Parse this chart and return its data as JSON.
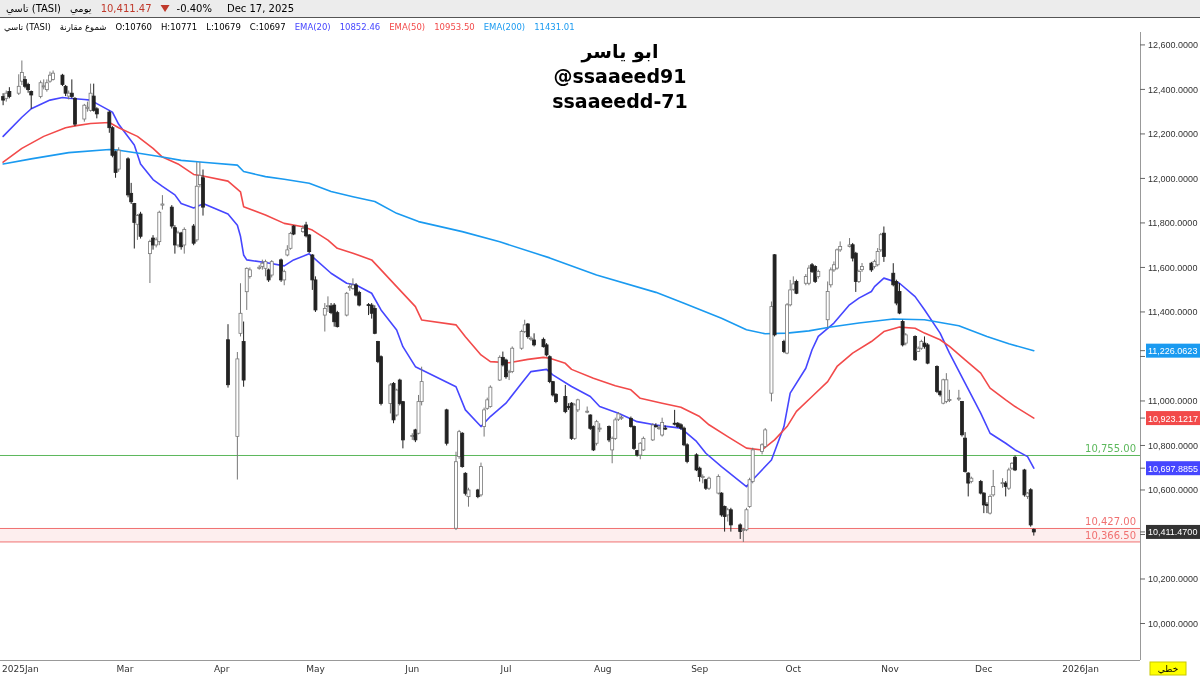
{
  "chart_data": {
    "type": "candlestick",
    "title": "تاسي (TASI)",
    "subtitle": "تاسي (TASI)",
    "xlim": [
      "2025-01-20",
      "2026-01-20"
    ],
    "xticks": [
      {
        "value": "2025-01-21",
        "label": "2025Jan"
      },
      {
        "value": "2025-03-01",
        "label": "Mar"
      },
      {
        "value": "2025-04-01",
        "label": "Apr"
      },
      {
        "value": "2025-05-01",
        "label": "May"
      },
      {
        "value": "2025-06-01",
        "label": "Jun"
      },
      {
        "value": "2025-07-01",
        "label": "Jul"
      },
      {
        "value": "2025-08-01",
        "label": "Aug"
      },
      {
        "value": "2025-09-01",
        "label": "Sep"
      },
      {
        "value": "2025-10-01",
        "label": "Oct"
      },
      {
        "value": "2025-11-01",
        "label": "Nov"
      },
      {
        "value": "2025-12-01",
        "label": "Dec"
      },
      {
        "value": "2026-01-01",
        "label": "2026Jan"
      }
    ],
    "ylim": [
      9836,
      12658
    ],
    "yticks": [
      {
        "value": 10000,
        "label": "10,000.0000"
      },
      {
        "value": 10200,
        "label": "10,200.0000"
      },
      {
        "value": 10400,
        "label": null
      },
      {
        "value": 10600,
        "label": "10,600.0000"
      },
      {
        "value": 10800,
        "label": "10,800.0000"
      },
      {
        "value": 11000,
        "label": "11,000.0000"
      },
      {
        "value": 11200,
        "label": null
      },
      {
        "value": 11400,
        "label": "11,400.0000"
      },
      {
        "value": 11600,
        "label": "11,600.0000"
      },
      {
        "value": 11800,
        "label": "11,800.0000"
      },
      {
        "value": 12000,
        "label": "12,000.0000"
      },
      {
        "value": 12200,
        "label": "12,200.0000"
      },
      {
        "value": 12400,
        "label": "12,400.0000"
      },
      {
        "value": 12600,
        "label": "12,600.0000"
      },
      {
        "value": 11226.0623,
        "label": "11,226.0623"
      },
      {
        "value": 10923.1217,
        "label": "10,923.1217"
      },
      {
        "value": 10697.8855,
        "label": "10,697.8855"
      },
      {
        "value": 10411.47,
        "label": "10,411.4700"
      }
    ],
    "legend": "top",
    "x": [
      "2025-01-21",
      "2025-01-22",
      "2025-01-23",
      "2025-01-26",
      "2025-01-27",
      "2025-01-28",
      "2025-01-29",
      "2025-01-30",
      "2025-02-02",
      "2025-02-03",
      "2025-02-04",
      "2025-02-05",
      "2025-02-06",
      "2025-02-09",
      "2025-02-10",
      "2025-02-11",
      "2025-02-12",
      "2025-02-13",
      "2025-02-16",
      "2025-02-17",
      "2025-02-18",
      "2025-02-19",
      "2025-02-20",
      "2025-02-24",
      "2025-02-25",
      "2025-02-26",
      "2025-02-27",
      "2025-03-02",
      "2025-03-03",
      "2025-03-04",
      "2025-03-05",
      "2025-03-06",
      "2025-03-09",
      "2025-03-10",
      "2025-03-11",
      "2025-03-12",
      "2025-03-13",
      "2025-03-16",
      "2025-03-17",
      "2025-03-18",
      "2025-03-19",
      "2025-03-20",
      "2025-03-23",
      "2025-03-24",
      "2025-03-25",
      "2025-03-26",
      "2025-04-03",
      "2025-04-06",
      "2025-04-07",
      "2025-04-08",
      "2025-04-09",
      "2025-04-10",
      "2025-04-13",
      "2025-04-14",
      "2025-04-15",
      "2025-04-16",
      "2025-04-17",
      "2025-04-20",
      "2025-04-21",
      "2025-04-22",
      "2025-04-23",
      "2025-04-24",
      "2025-04-27",
      "2025-04-28",
      "2025-04-29",
      "2025-04-30",
      "2025-05-01",
      "2025-05-04",
      "2025-05-05",
      "2025-05-06",
      "2025-05-07",
      "2025-05-08",
      "2025-05-11",
      "2025-05-12",
      "2025-05-13",
      "2025-05-14",
      "2025-05-15",
      "2025-05-18",
      "2025-05-19",
      "2025-05-20",
      "2025-05-21",
      "2025-05-22",
      "2025-05-25",
      "2025-05-26",
      "2025-05-27",
      "2025-05-28",
      "2025-05-29",
      "2025-06-01",
      "2025-06-02",
      "2025-06-03",
      "2025-06-04",
      "2025-06-12",
      "2025-06-15",
      "2025-06-16",
      "2025-06-17",
      "2025-06-18",
      "2025-06-19",
      "2025-06-22",
      "2025-06-23",
      "2025-06-24",
      "2025-06-25",
      "2025-06-26",
      "2025-06-29",
      "2025-06-30",
      "2025-07-01",
      "2025-07-02",
      "2025-07-03",
      "2025-07-06",
      "2025-07-07",
      "2025-07-08",
      "2025-07-09",
      "2025-07-10",
      "2025-07-13",
      "2025-07-14",
      "2025-07-15",
      "2025-07-16",
      "2025-07-17",
      "2025-07-20",
      "2025-07-21",
      "2025-07-22",
      "2025-07-23",
      "2025-07-24",
      "2025-07-27",
      "2025-07-28",
      "2025-07-29",
      "2025-07-30",
      "2025-07-31",
      "2025-08-03",
      "2025-08-04",
      "2025-08-05",
      "2025-08-06",
      "2025-08-07",
      "2025-08-10",
      "2025-08-11",
      "2025-08-12",
      "2025-08-13",
      "2025-08-14",
      "2025-08-17",
      "2025-08-18",
      "2025-08-19",
      "2025-08-20",
      "2025-08-21",
      "2025-08-24",
      "2025-08-25",
      "2025-08-26",
      "2025-08-27",
      "2025-08-28",
      "2025-08-31",
      "2025-09-01",
      "2025-09-02",
      "2025-09-03",
      "2025-09-04",
      "2025-09-07",
      "2025-09-08",
      "2025-09-09",
      "2025-09-10",
      "2025-09-11",
      "2025-09-14",
      "2025-09-15",
      "2025-09-16",
      "2025-09-17",
      "2025-09-18",
      "2025-09-21",
      "2025-09-22",
      "2025-09-24",
      "2025-09-25",
      "2025-09-28",
      "2025-09-29",
      "2025-09-30",
      "2025-10-01",
      "2025-10-02",
      "2025-10-05",
      "2025-10-06",
      "2025-10-07",
      "2025-10-08",
      "2025-10-09",
      "2025-10-12",
      "2025-10-13",
      "2025-10-14",
      "2025-10-15",
      "2025-10-16",
      "2025-10-19",
      "2025-10-20",
      "2025-10-21",
      "2025-10-22",
      "2025-10-23",
      "2025-10-26",
      "2025-10-27",
      "2025-10-28",
      "2025-10-29",
      "2025-10-30",
      "2025-11-02",
      "2025-11-03",
      "2025-11-04",
      "2025-11-05",
      "2025-11-06",
      "2025-11-09",
      "2025-11-10",
      "2025-11-11",
      "2025-11-12",
      "2025-11-13",
      "2025-11-16",
      "2025-11-17",
      "2025-11-18",
      "2025-11-19",
      "2025-11-20",
      "2025-11-23",
      "2025-11-24",
      "2025-11-25",
      "2025-11-26",
      "2025-11-27",
      "2025-11-30",
      "2025-12-01",
      "2025-12-02",
      "2025-12-03",
      "2025-12-04",
      "2025-12-07",
      "2025-12-08",
      "2025-12-09",
      "2025-12-10",
      "2025-12-11",
      "2025-12-14",
      "2025-12-15",
      "2025-12-16",
      "2025-12-17"
    ],
    "ohlc": [
      [
        12368,
        12383,
        12329,
        12352
      ],
      [
        12360,
        12395,
        12345,
        12383
      ],
      [
        12391,
        12410,
        12360,
        12368
      ],
      [
        12383,
        12468,
        12375,
        12414
      ],
      [
        12437,
        12530,
        12420,
        12476
      ],
      [
        12445,
        12460,
        12405,
        12414
      ],
      [
        12422,
        12430,
        12385,
        12399
      ],
      [
        12391,
        12395,
        12313,
        12375
      ],
      [
        12368,
        12440,
        12360,
        12430
      ],
      [
        12414,
        12445,
        12400,
        12416
      ],
      [
        12399,
        12445,
        12390,
        12430
      ],
      [
        12437,
        12480,
        12430,
        12464
      ],
      [
        12445,
        12485,
        12440,
        12473
      ],
      [
        12464,
        12470,
        12415,
        12422
      ],
      [
        12414,
        12420,
        12370,
        12383
      ],
      [
        12370,
        12395,
        12355,
        12383
      ],
      [
        12383,
        12445,
        12360,
        12368
      ],
      [
        12360,
        12365,
        12235,
        12244
      ],
      [
        12267,
        12335,
        12255,
        12329
      ],
      [
        12315,
        12345,
        12300,
        12320
      ],
      [
        12306,
        12426,
        12300,
        12383
      ],
      [
        12370,
        12426,
        12300,
        12306
      ],
      [
        12313,
        12320,
        12270,
        12290
      ],
      [
        12298,
        12305,
        12205,
        12228
      ],
      [
        12228,
        12235,
        12095,
        12104
      ],
      [
        12120,
        12125,
        12003,
        12027
      ],
      [
        12042,
        12140,
        12030,
        12127
      ],
      [
        12088,
        12095,
        11915,
        11926
      ],
      [
        11933,
        11980,
        11885,
        11895
      ],
      [
        11887,
        11890,
        11685,
        11802
      ],
      [
        11794,
        11840,
        11724,
        11833
      ],
      [
        11840,
        11850,
        11730,
        11740
      ],
      [
        11662,
        11725,
        11530,
        11716
      ],
      [
        11732,
        11745,
        11680,
        11701
      ],
      [
        11701,
        11735,
        11690,
        11724
      ],
      [
        11716,
        11855,
        11700,
        11848
      ],
      [
        11880,
        11925,
        11860,
        11885
      ],
      [
        11871,
        11880,
        11775,
        11786
      ],
      [
        11779,
        11790,
        11662,
        11701
      ],
      [
        11701,
        11765,
        11690,
        11755
      ],
      [
        11755,
        11760,
        11680,
        11693
      ],
      [
        11701,
        11780,
        11662,
        11771
      ],
      [
        11786,
        11795,
        11700,
        11709
      ],
      [
        11724,
        12073,
        11715,
        11965
      ],
      [
        11972,
        12073,
        11960,
        12014
      ],
      [
        12003,
        12040,
        11833,
        11871
      ],
      [
        11275,
        11345,
        11060,
        11073
      ],
      [
        10841,
        11220,
        10647,
        11189
      ],
      [
        11304,
        11529,
        11290,
        11394
      ],
      [
        11267,
        11357,
        11064,
        11094
      ],
      [
        11491,
        11600,
        11409,
        11596
      ],
      [
        11559,
        11600,
        11550,
        11589
      ],
      [
        11596,
        11610,
        11590,
        11601
      ],
      [
        11604,
        11635,
        11590,
        11619
      ],
      [
        11596,
        11635,
        11560,
        11626
      ],
      [
        11589,
        11595,
        11535,
        11544
      ],
      [
        11566,
        11633,
        11555,
        11626
      ],
      [
        11634,
        11640,
        11535,
        11544
      ],
      [
        11544,
        11590,
        11520,
        11581
      ],
      [
        11656,
        11700,
        11650,
        11679
      ],
      [
        11686,
        11760,
        11680,
        11753
      ],
      [
        11786,
        11790,
        11745,
        11750
      ],
      [
        11761,
        11790,
        11755,
        11776
      ],
      [
        11791,
        11805,
        11735,
        11742
      ],
      [
        11746,
        11750,
        11665,
        11671
      ],
      [
        11656,
        11660,
        11499,
        11544
      ],
      [
        11544,
        11560,
        11400,
        11409
      ],
      [
        11386,
        11440,
        11312,
        11416
      ],
      [
        11425,
        11470,
        11400,
        11428
      ],
      [
        11427,
        11440,
        11390,
        11397
      ],
      [
        11431,
        11440,
        11334,
        11356
      ],
      [
        11397,
        11405,
        11330,
        11334
      ],
      [
        11386,
        11490,
        11380,
        11484
      ],
      [
        11509,
        11530,
        11495,
        11514
      ],
      [
        11506,
        11551,
        11500,
        11521
      ],
      [
        11521,
        11530,
        11470,
        11476
      ],
      [
        11487,
        11495,
        11425,
        11431
      ],
      [
        11433,
        11440,
        11386,
        11431
      ],
      [
        11431,
        11440,
        11370,
        11394
      ],
      [
        11416,
        11430,
        11300,
        11304
      ],
      [
        11267,
        11270,
        11170,
        11177
      ],
      [
        11199,
        11205,
        10980,
        10989
      ],
      [
        10989,
        11080,
        10944,
        11072
      ],
      [
        11079,
        11085,
        10900,
        10915
      ],
      [
        10937,
        11055,
        10930,
        11049
      ],
      [
        11094,
        11100,
        10980,
        10989
      ],
      [
        10997,
        11000,
        10787,
        10825
      ],
      [
        10840,
        10855,
        10825,
        10845
      ],
      [
        10870,
        10875,
        10815,
        10825
      ],
      [
        10855,
        11027,
        10850,
        10997
      ],
      [
        10997,
        11154,
        10980,
        11087
      ],
      [
        10960,
        10965,
        10800,
        10810
      ],
      [
        10428,
        10772,
        10420,
        10727
      ],
      [
        10750,
        10870,
        10740,
        10862
      ],
      [
        10855,
        10860,
        10700,
        10705
      ],
      [
        10675,
        10680,
        10575,
        10585
      ],
      [
        10570,
        10610,
        10525,
        10600
      ],
      [
        10600,
        10605,
        10563,
        10570
      ],
      [
        10578,
        10723,
        10570,
        10705
      ],
      [
        10885,
        10970,
        10840,
        10960
      ],
      [
        10967,
        11015,
        10960,
        11005
      ],
      [
        10975,
        11070,
        10970,
        11062
      ],
      [
        11094,
        11205,
        11090,
        11196
      ],
      [
        11196,
        11222,
        11155,
        11162
      ],
      [
        11184,
        11190,
        11100,
        11109
      ],
      [
        11130,
        11140,
        11094,
        11132
      ],
      [
        11132,
        11245,
        11125,
        11237
      ],
      [
        11237,
        11320,
        11230,
        11312
      ],
      [
        11312,
        11365,
        11305,
        11342
      ],
      [
        11346,
        11350,
        11280,
        11289
      ],
      [
        11280,
        11290,
        11270,
        11282
      ],
      [
        11274,
        11304,
        11245,
        11252
      ],
      [
        11277,
        11285,
        11240,
        11244
      ],
      [
        11252,
        11260,
        11200,
        11207
      ],
      [
        11199,
        11205,
        11080,
        11087
      ],
      [
        11087,
        11090,
        11020,
        11027
      ],
      [
        11030,
        11035,
        10990,
        10997
      ],
      [
        11020,
        11072,
        10945,
        10952
      ],
      [
        10975,
        10990,
        10960,
        10973
      ],
      [
        10990,
        10995,
        10825,
        10832
      ],
      [
        10832,
        10990,
        10825,
        10982
      ],
      [
        10960,
        11010,
        10950,
        11005
      ],
      [
        10952,
        10975,
        10945,
        10954
      ],
      [
        10937,
        10940,
        10870,
        10877
      ],
      [
        10885,
        10890,
        10775,
        10780
      ],
      [
        10810,
        10915,
        10800,
        10907
      ],
      [
        10877,
        10900,
        10860,
        10878
      ],
      [
        10885,
        10890,
        10815,
        10825
      ],
      [
        10780,
        10840,
        10720,
        10832
      ],
      [
        10832,
        10925,
        10825,
        10915
      ],
      [
        10918,
        10950,
        10910,
        10942
      ],
      [
        10925,
        10935,
        10915,
        10927
      ],
      [
        10922,
        10930,
        10880,
        10885
      ],
      [
        10885,
        10890,
        10780,
        10787
      ],
      [
        10777,
        10780,
        10750,
        10757
      ],
      [
        10757,
        10815,
        10738,
        10810
      ],
      [
        10780,
        10840,
        10775,
        10832
      ],
      [
        10825,
        10900,
        10820,
        10892
      ],
      [
        10889,
        10900,
        10880,
        10887
      ],
      [
        10877,
        10890,
        10870,
        10880
      ],
      [
        10847,
        10925,
        10840,
        10903
      ],
      [
        10878,
        10890,
        10870,
        10877
      ],
      [
        10900,
        10960,
        10890,
        10898
      ],
      [
        10900,
        10905,
        10880,
        10885
      ],
      [
        10893,
        10900,
        10870,
        10878
      ],
      [
        10878,
        10885,
        10797,
        10803
      ],
      [
        10803,
        10810,
        10720,
        10728
      ],
      [
        10758,
        10765,
        10685,
        10690
      ],
      [
        10698,
        10705,
        10638,
        10660
      ],
      [
        10660,
        10670,
        10630,
        10661
      ],
      [
        10646,
        10650,
        10600,
        10608
      ],
      [
        10608,
        10660,
        10600,
        10653
      ],
      [
        10586,
        10670,
        10580,
        10661
      ],
      [
        10586,
        10590,
        10480,
        10488
      ],
      [
        10526,
        10530,
        10413,
        10481
      ],
      [
        10488,
        10520,
        10458,
        10511
      ],
      [
        10511,
        10520,
        10413,
        10443
      ],
      [
        10443,
        10450,
        10380,
        10413
      ],
      [
        10421,
        10430,
        10366.5,
        10423
      ],
      [
        10421,
        10520,
        10415,
        10511
      ],
      [
        10526,
        10655,
        10520,
        10646
      ],
      [
        10638,
        10790,
        10630,
        10780
      ],
      [
        10773,
        10810,
        10760,
        10803
      ],
      [
        10795,
        10878,
        10790,
        10870
      ],
      [
        11035,
        11447,
        10998,
        11424
      ],
      [
        11657,
        11660,
        11290,
        11297
      ],
      [
        11267,
        11275,
        11215,
        11222
      ],
      [
        11215,
        11440,
        11210,
        11432
      ],
      [
        11432,
        11544,
        11425,
        11499
      ],
      [
        11502,
        11560,
        11495,
        11526
      ],
      [
        11537,
        11545,
        11480,
        11484
      ],
      [
        11529,
        11570,
        11520,
        11559
      ],
      [
        11529,
        11610,
        11520,
        11597
      ],
      [
        11612,
        11620,
        11575,
        11582
      ],
      [
        11604,
        11610,
        11530,
        11537
      ],
      [
        11559,
        11590,
        11550,
        11582
      ],
      [
        11365,
        11537,
        11330,
        11492
      ],
      [
        11522,
        11600,
        11510,
        11589
      ],
      [
        11589,
        11627,
        11580,
        11612
      ],
      [
        11597,
        11685,
        11590,
        11679
      ],
      [
        11679,
        11717,
        11670,
        11694
      ],
      [
        11694,
        11732,
        11690,
        11701
      ],
      [
        11702,
        11710,
        11627,
        11642
      ],
      [
        11664,
        11670,
        11490,
        11537
      ],
      [
        11537,
        11590,
        11530,
        11582
      ],
      [
        11590,
        11620,
        11580,
        11604
      ],
      [
        11619,
        11625,
        11580,
        11589
      ],
      [
        11604,
        11635,
        11595,
        11627
      ],
      [
        11612,
        11687,
        11605,
        11672
      ],
      [
        11679,
        11755,
        11670,
        11747
      ],
      [
        11754,
        11784,
        11625,
        11649
      ],
      [
        11574,
        11619,
        11515,
        11522
      ],
      [
        11537,
        11545,
        11430,
        11440
      ],
      [
        11492,
        11530,
        11390,
        11395
      ],
      [
        11357,
        11365,
        11245,
        11252
      ],
      [
        11260,
        11305,
        11250,
        11297
      ],
      [
        11290,
        11295,
        11180,
        11185
      ],
      [
        11222,
        11245,
        11220,
        11237
      ],
      [
        11237,
        11275,
        11230,
        11267
      ],
      [
        11260,
        11290,
        11235,
        11245
      ],
      [
        11252,
        11260,
        11165,
        11170
      ],
      [
        11155,
        11160,
        11035,
        11043
      ],
      [
        11043,
        11048,
        11020,
        11028
      ],
      [
        10990,
        11100,
        10985,
        11095
      ],
      [
        10998,
        11125,
        10990,
        11095
      ],
      [
        11005,
        11050,
        10995,
        11007
      ],
      [
        11010,
        11050,
        11000,
        11013
      ],
      [
        10998,
        11000,
        10840,
        10848
      ],
      [
        10833,
        10860,
        10678,
        10683
      ],
      [
        10676,
        10680,
        10571,
        10631
      ],
      [
        10638,
        10660,
        10630,
        10653
      ],
      [
        10638,
        10645,
        10580,
        10586
      ],
      [
        10586,
        10590,
        10496,
        10533
      ],
      [
        10535,
        10545,
        10496,
        10533
      ],
      [
        10496,
        10580,
        10490,
        10571
      ],
      [
        10578,
        10690,
        10570,
        10616
      ],
      [
        10631,
        10653,
        10610,
        10633
      ],
      [
        10631,
        10640,
        10571,
        10616
      ],
      [
        10608,
        10700,
        10600,
        10690
      ],
      [
        10698,
        10725,
        10690,
        10720
      ],
      [
        10747,
        10755,
        10685,
        10690
      ],
      [
        10690,
        10695,
        10570,
        10578
      ],
      [
        10571,
        10590,
        10560,
        10586
      ],
      [
        10601,
        10608,
        10435,
        10443
      ],
      [
        10423,
        10427,
        10395,
        10411.47
      ]
    ],
    "series": [
      {
        "name": "EMA(20)",
        "type": "line",
        "color": "#4646ff",
        "x": [
          "2025-01-21",
          "2025-01-27",
          "2025-01-30",
          "2025-02-05",
          "2025-02-09",
          "2025-02-11",
          "2025-02-16",
          "2025-02-18",
          "2025-02-20",
          "2025-02-25",
          "2025-02-27",
          "2025-03-04",
          "2025-03-06",
          "2025-03-10",
          "2025-03-13",
          "2025-03-17",
          "2025-03-19",
          "2025-03-23",
          "2025-03-25",
          "2025-03-26",
          "2025-04-03",
          "2025-04-06",
          "2025-04-07",
          "2025-04-08",
          "2025-04-09",
          "2025-04-15",
          "2025-04-21",
          "2025-04-24",
          "2025-04-29",
          "2025-04-30",
          "2025-05-06",
          "2025-05-11",
          "2025-05-14",
          "2025-05-19",
          "2025-05-22",
          "2025-05-27",
          "2025-05-29",
          "2025-06-02",
          "2025-06-15",
          "2025-06-18",
          "2025-06-23",
          "2025-06-26",
          "2025-07-01",
          "2025-07-06",
          "2025-07-09",
          "2025-07-14",
          "2025-07-16",
          "2025-07-22",
          "2025-07-28",
          "2025-07-31",
          "2025-08-06",
          "2025-08-12",
          "2025-08-18",
          "2025-08-20",
          "2025-08-26",
          "2025-08-31",
          "2025-09-03",
          "2025-09-08",
          "2025-09-14",
          "2025-09-16",
          "2025-09-18",
          "2025-09-24",
          "2025-09-28",
          "2025-09-30",
          "2025-10-05",
          "2025-10-07",
          "2025-10-09",
          "2025-10-14",
          "2025-10-19",
          "2025-10-22",
          "2025-10-26",
          "2025-10-27",
          "2025-10-30",
          "2025-11-04",
          "2025-11-09",
          "2025-11-12",
          "2025-11-17",
          "2025-11-20",
          "2025-11-25",
          "2025-11-30",
          "2025-12-03",
          "2025-12-08",
          "2025-12-11",
          "2025-12-15",
          "2025-12-17"
        ],
        "values": [
          12189,
          12275,
          12313,
          12352,
          12364,
          12360,
          12355,
          12352,
          12336,
          12298,
          12243,
          12150,
          12065,
          11995,
          11964,
          11926,
          11887,
          11867,
          11879,
          11887,
          11840,
          11790,
          11740,
          11656,
          11634,
          11622,
          11607,
          11634,
          11661,
          11649,
          11574,
          11529,
          11521,
          11484,
          11409,
          11319,
          11244,
          11154,
          11064,
          10960,
          10885,
          10930,
          10990,
          11080,
          11132,
          11142,
          11117,
          11065,
          11020,
          10975,
          10945,
          10907,
          10892,
          10888,
          10878,
          10818,
          10765,
          10705,
          10638,
          10615,
          10646,
          10735,
          10885,
          11035,
          11147,
          11230,
          11290,
          11350,
          11432,
          11462,
          11492,
          11514,
          11552,
          11529,
          11469,
          11410,
          11305,
          11215,
          11080,
          10945,
          10855,
          10810,
          10780,
          10750,
          10697.8855
        ]
      },
      {
        "name": "EMA(50)",
        "type": "line",
        "color": "#f24a4a",
        "x": [
          "2025-01-21",
          "2025-01-27",
          "2025-02-03",
          "2025-02-10",
          "2025-02-13",
          "2025-02-18",
          "2025-02-24",
          "2025-02-27",
          "2025-03-05",
          "2025-03-10",
          "2025-03-13",
          "2025-03-18",
          "2025-03-23",
          "2025-03-26",
          "2025-04-03",
          "2025-04-07",
          "2025-04-08",
          "2025-04-15",
          "2025-04-21",
          "2025-04-27",
          "2025-04-30",
          "2025-05-05",
          "2025-05-08",
          "2025-05-13",
          "2025-05-19",
          "2025-05-22",
          "2025-05-27",
          "2025-06-02",
          "2025-06-04",
          "2025-06-15",
          "2025-06-18",
          "2025-06-23",
          "2025-06-26",
          "2025-07-02",
          "2025-07-08",
          "2025-07-13",
          "2025-07-15",
          "2025-07-20",
          "2025-07-22",
          "2025-07-29",
          "2025-08-05",
          "2025-08-10",
          "2025-08-13",
          "2025-08-20",
          "2025-08-26",
          "2025-09-01",
          "2025-09-04",
          "2025-09-10",
          "2025-09-16",
          "2025-09-21",
          "2025-09-25",
          "2025-09-29",
          "2025-10-02",
          "2025-10-07",
          "2025-10-12",
          "2025-10-15",
          "2025-10-20",
          "2025-10-26",
          "2025-10-30",
          "2025-11-04",
          "2025-11-09",
          "2025-11-12",
          "2025-11-17",
          "2025-11-20",
          "2025-11-25",
          "2025-11-30",
          "2025-12-03",
          "2025-12-08",
          "2025-12-11",
          "2025-12-17"
        ],
        "values": [
          12073,
          12135,
          12189,
          12228,
          12236,
          12247,
          12251,
          12228,
          12189,
          12135,
          12096,
          12065,
          12018,
          12011,
          11988,
          11940,
          11873,
          11836,
          11798,
          11783,
          11768,
          11723,
          11686,
          11664,
          11634,
          11589,
          11514,
          11424,
          11364,
          11342,
          11289,
          11207,
          11177,
          11172,
          11187,
          11196,
          11192,
          11169,
          11142,
          11102,
          11068,
          11050,
          11012,
          10990,
          10972,
          10930,
          10893,
          10840,
          10788,
          10780,
          10825,
          10885,
          10953,
          11020,
          11087,
          11155,
          11215,
          11267,
          11312,
          11332,
          11327,
          11305,
          11275,
          11245,
          11185,
          11125,
          11058,
          11005,
          10975,
          10923.1217
        ]
      },
      {
        "name": "EMA(200)",
        "type": "line",
        "color": "#1a9af0",
        "x": [
          "2025-01-21",
          "2025-01-30",
          "2025-02-11",
          "2025-02-24",
          "2025-02-27",
          "2025-03-06",
          "2025-03-13",
          "2025-03-19",
          "2025-03-26",
          "2025-04-06",
          "2025-04-08",
          "2025-04-15",
          "2025-04-21",
          "2025-04-29",
          "2025-05-06",
          "2025-05-13",
          "2025-05-20",
          "2025-05-27",
          "2025-06-03",
          "2025-06-17",
          "2025-06-29",
          "2025-07-15",
          "2025-07-30",
          "2025-08-18",
          "2025-08-27",
          "2025-09-08",
          "2025-09-16",
          "2025-09-22",
          "2025-09-29",
          "2025-10-06",
          "2025-10-13",
          "2025-10-22",
          "2025-11-02",
          "2025-11-12",
          "2025-11-23",
          "2025-12-02",
          "2025-12-09",
          "2025-12-17"
        ],
        "values": [
          12065,
          12088,
          12116,
          12130,
          12127,
          12112,
          12096,
          12081,
          12073,
          12060,
          12031,
          12008,
          11996,
          11978,
          11941,
          11918,
          11896,
          11843,
          11806,
          11761,
          11715,
          11643,
          11566,
          11488,
          11439,
          11372,
          11320,
          11302,
          11305,
          11315,
          11332,
          11350,
          11368,
          11365,
          11338,
          11290,
          11257,
          11226.0623
        ]
      }
    ],
    "ref_lines": [
      {
        "axis": "y",
        "value": 10755,
        "label": "10,755.00",
        "color": "#5cb85c"
      },
      {
        "axis": "y",
        "value": 10427,
        "label": "10,427.00",
        "color": "#f07070"
      },
      {
        "axis": "y",
        "value": 10366.5,
        "label": "10,366.50",
        "color": "#f07070"
      }
    ],
    "bands": [
      {
        "axis": "y",
        "from": 10366.5,
        "to": 10427,
        "color": "#fdeeee"
      }
    ],
    "annotations": [
      "يومي",
      "10,411.47",
      "-0.40%",
      "Dec 17, 2025",
      "شموع مقارنة",
      "O:10760",
      "H:10771",
      "L:10679",
      "C:10697",
      "ابو ياسر",
      "@ssaaeed91",
      "ssaaeedd-71",
      "خطي",
      "10852.46",
      "10953.50",
      "11431.01"
    ]
  }
}
